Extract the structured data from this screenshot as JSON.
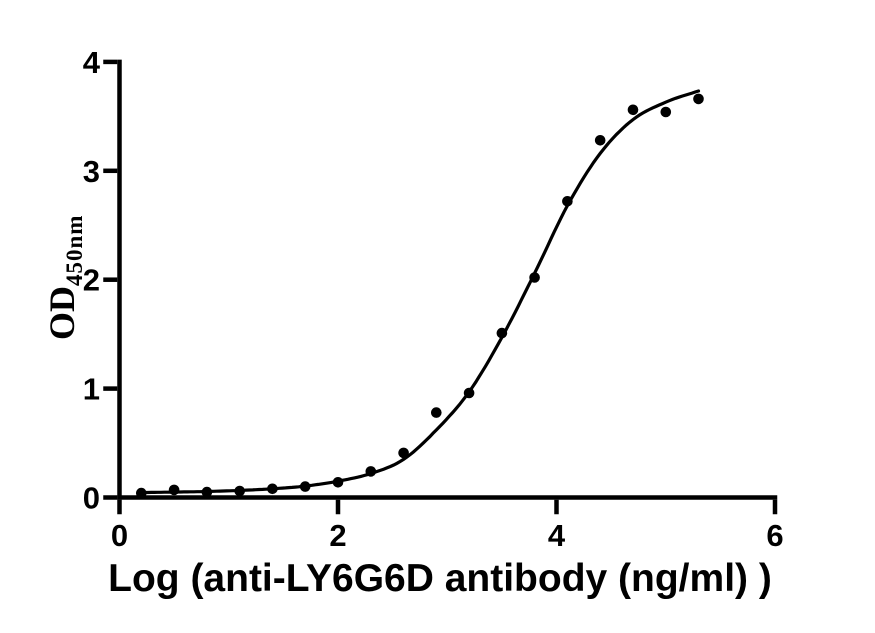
{
  "figure": {
    "background_color": "#ffffff",
    "axis_color": "#000000",
    "x_axis_title": "Log (anti-LY6G6D antibody (ng/ml) )",
    "y_axis_title": {
      "main": "OD",
      "sub": "450nm"
    }
  },
  "chart_data": {
    "type": "scatter",
    "title": "",
    "xlabel": "Log (anti-LY6G6D antibody (ng/ml) )",
    "ylabel": "OD450nm",
    "xlim": [
      0,
      6
    ],
    "ylim": [
      0,
      4
    ],
    "x_ticks": [
      0,
      2,
      4,
      6
    ],
    "y_ticks": [
      0,
      1,
      2,
      3,
      4
    ],
    "grid": false,
    "legend_position": "none",
    "marker_color": "#000000",
    "marker_radius_px": 5.3,
    "curve_color": "#000000",
    "series": [
      {
        "name": "anti-LY6G6D antibody",
        "x": [
          0.2,
          0.5,
          0.8,
          1.1,
          1.4,
          1.7,
          2.0,
          2.3,
          2.6,
          2.9,
          3.2,
          3.5,
          3.8,
          4.1,
          4.4,
          4.7,
          5.0,
          5.3
        ],
        "y": [
          0.04,
          0.07,
          0.05,
          0.06,
          0.08,
          0.1,
          0.14,
          0.24,
          0.41,
          0.78,
          0.96,
          1.51,
          2.02,
          2.72,
          3.28,
          3.56,
          3.54,
          3.66
        ]
      }
    ],
    "fit_curve": {
      "model": "sigmoidal dose-response (4PL) fitted line",
      "x": [
        0.2,
        0.5,
        0.8,
        1.1,
        1.4,
        1.7,
        2.0,
        2.3,
        2.6,
        2.9,
        3.2,
        3.5,
        3.8,
        4.1,
        4.4,
        4.7,
        5.0,
        5.32
      ],
      "y": [
        0.045,
        0.05,
        0.055,
        0.065,
        0.08,
        0.105,
        0.15,
        0.22,
        0.35,
        0.62,
        0.97,
        1.47,
        2.06,
        2.68,
        3.16,
        3.47,
        3.63,
        3.74
      ]
    }
  }
}
